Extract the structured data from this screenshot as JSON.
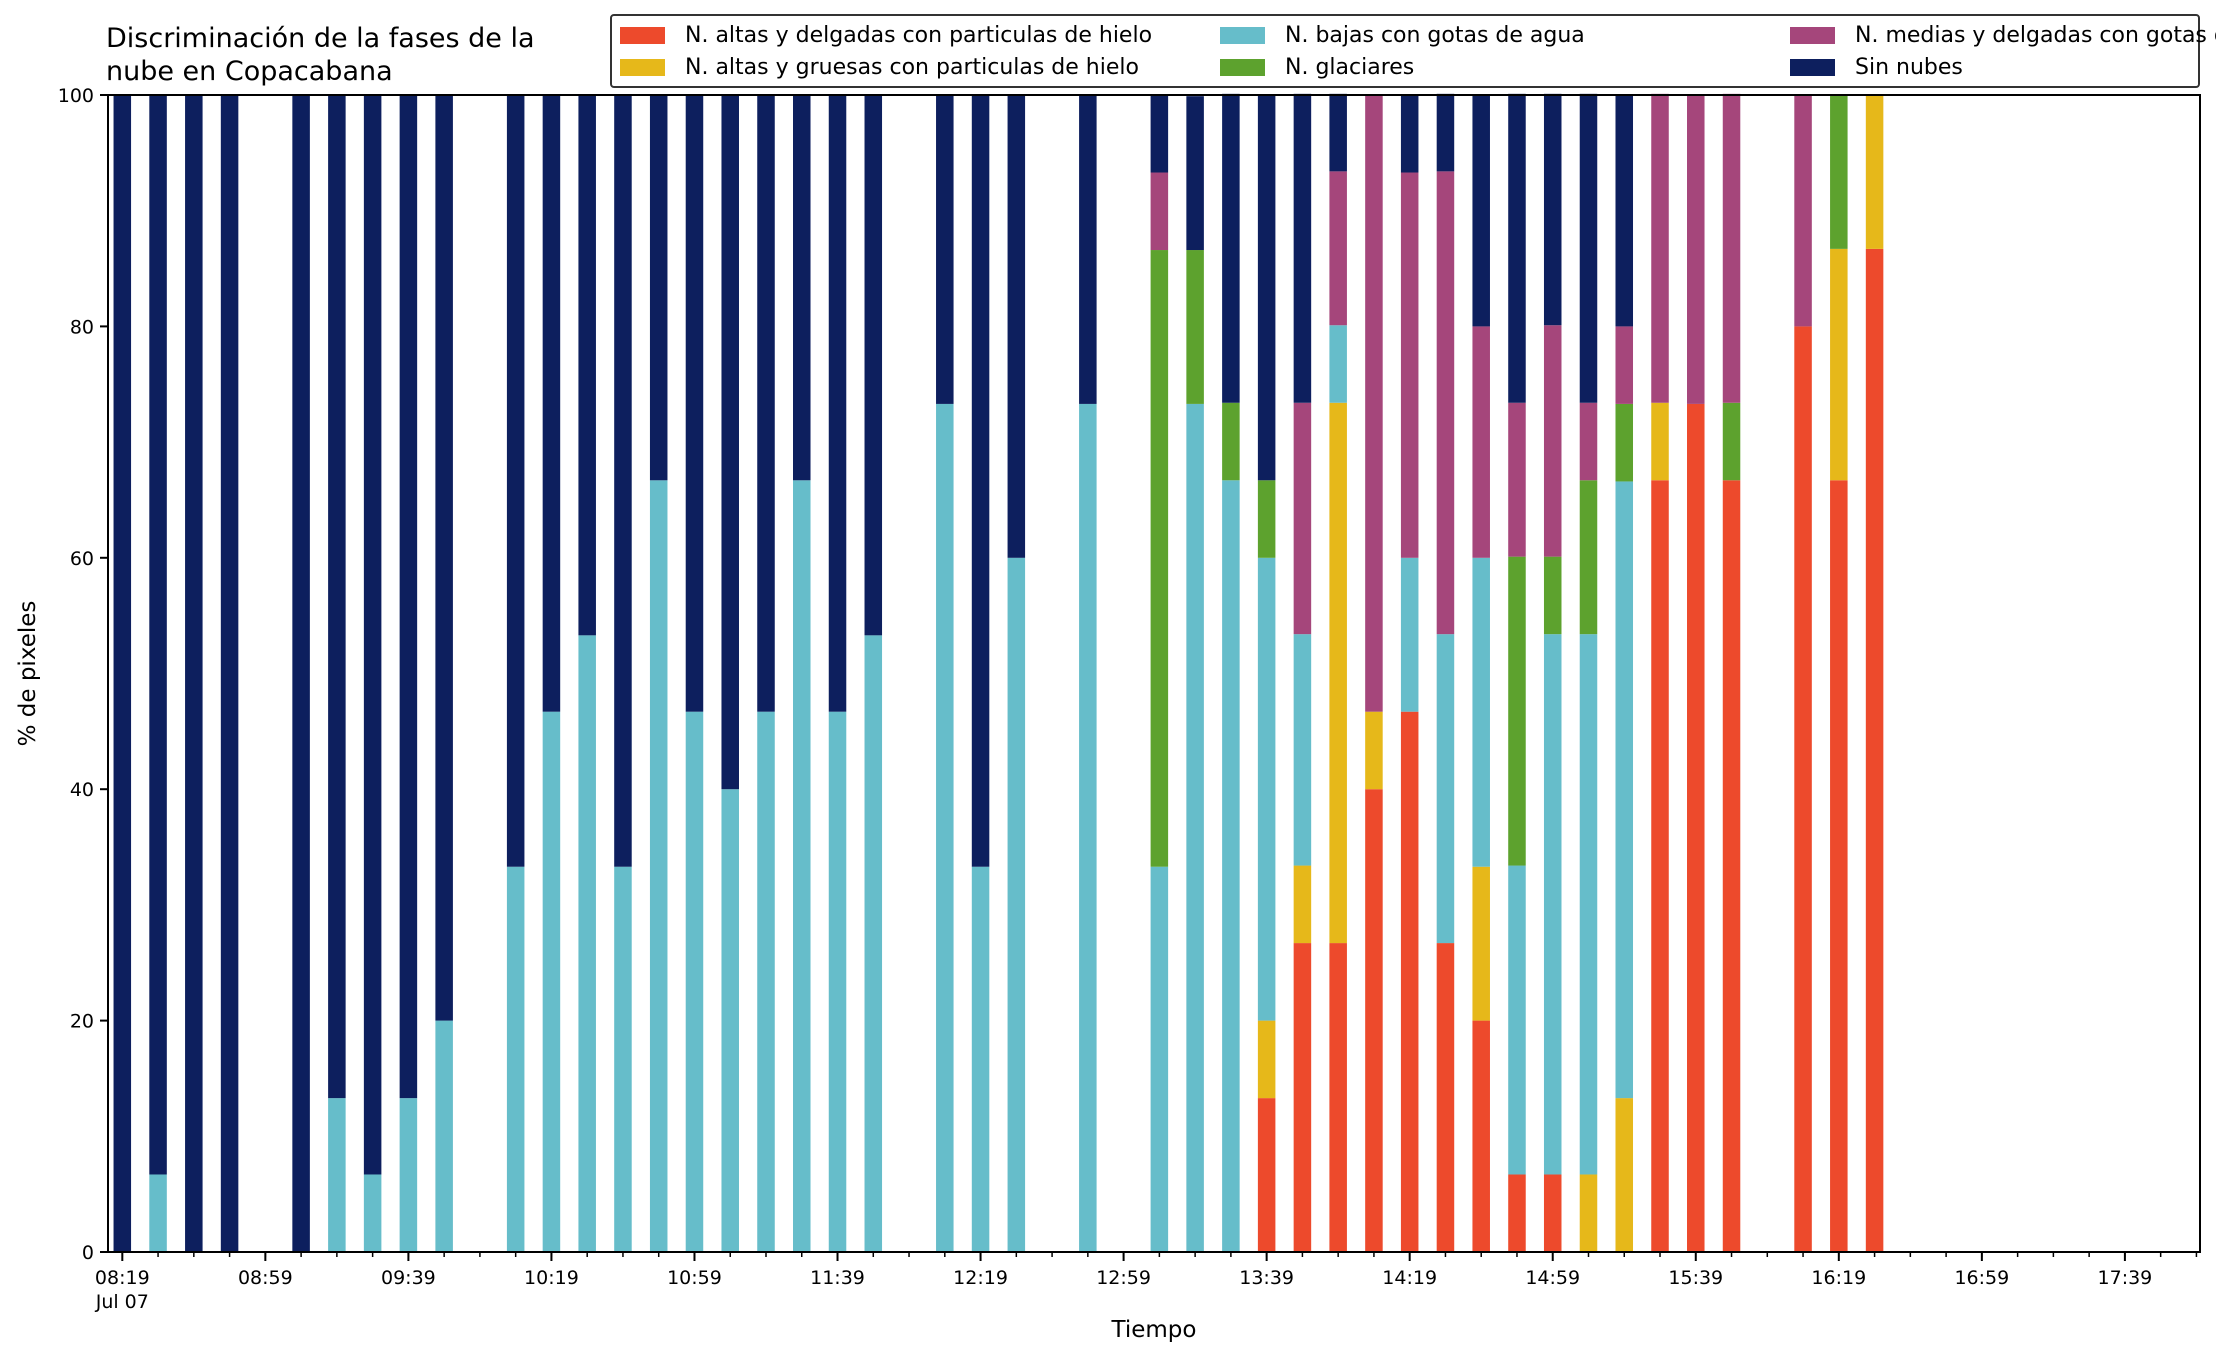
{
  "chart_data": {
    "type": "bar",
    "stacked": true,
    "title": "Discriminación de la fases de la\nnube en Copacabana",
    "xlabel": "Tiempo",
    "ylabel": "% de pixeles",
    "ylim": [
      0,
      100
    ],
    "yticks": [
      0,
      20,
      40,
      60,
      80,
      100
    ],
    "xlim": [
      "08:15",
      "18:00"
    ],
    "bar_width_minutes": 5,
    "xticks": [
      {
        "time": "08:19",
        "label": "08:19",
        "sublabel": "Jul 07"
      },
      {
        "time": "08:59",
        "label": "08:59"
      },
      {
        "time": "09:39",
        "label": "09:39"
      },
      {
        "time": "10:19",
        "label": "10:19"
      },
      {
        "time": "10:59",
        "label": "10:59"
      },
      {
        "time": "11:39",
        "label": "11:39"
      },
      {
        "time": "12:19",
        "label": "12:19"
      },
      {
        "time": "12:59",
        "label": "12:59"
      },
      {
        "time": "13:39",
        "label": "13:39"
      },
      {
        "time": "14:19",
        "label": "14:19"
      },
      {
        "time": "14:59",
        "label": "14:59"
      },
      {
        "time": "15:39",
        "label": "15:39"
      },
      {
        "time": "16:19",
        "label": "16:19"
      },
      {
        "time": "16:59",
        "label": "16:59"
      },
      {
        "time": "17:39",
        "label": "17:39"
      }
    ],
    "grid": false,
    "legend_position": "top-right",
    "x": [
      "08:19",
      "08:29",
      "08:39",
      "08:49",
      "09:09",
      "09:19",
      "09:29",
      "09:39",
      "09:49",
      "10:09",
      "10:19",
      "10:29",
      "10:39",
      "10:49",
      "10:59",
      "11:09",
      "11:19",
      "11:29",
      "11:39",
      "11:49",
      "12:09",
      "12:19",
      "12:29",
      "12:49",
      "13:09",
      "13:19",
      "13:29",
      "13:39",
      "13:49",
      "13:59",
      "14:09",
      "14:19",
      "14:29",
      "14:39",
      "14:49",
      "14:59",
      "15:09",
      "15:19",
      "15:29",
      "15:39",
      "15:49",
      "16:09",
      "16:19",
      "16:29"
    ],
    "series": [
      {
        "name": "N. altas y delgadas con particulas de hielo",
        "color": "#ed4a2c",
        "values": [
          0,
          0,
          0,
          0,
          0,
          0,
          0,
          0,
          0,
          0,
          0,
          0,
          0,
          0,
          0,
          0,
          0,
          0,
          0,
          0,
          0,
          0,
          0,
          0,
          0,
          0,
          0,
          13.3,
          26.7,
          26.7,
          40,
          46.7,
          26.7,
          20,
          6.7,
          6.7,
          0,
          0,
          66.7,
          73.3,
          66.7,
          80,
          66.7,
          86.7
        ]
      },
      {
        "name": "N. altas y gruesas con particulas de hielo",
        "color": "#e6b81a",
        "values": [
          0,
          0,
          0,
          0,
          0,
          0,
          0,
          0,
          0,
          0,
          0,
          0,
          0,
          0,
          0,
          0,
          0,
          0,
          0,
          0,
          0,
          0,
          0,
          0,
          0,
          0,
          0,
          6.7,
          6.7,
          46.7,
          6.7,
          0,
          0,
          13.3,
          0,
          0,
          6.7,
          13.3,
          6.7,
          0,
          0,
          0,
          20,
          13.3
        ]
      },
      {
        "name": "N. bajas con gotas de agua",
        "color": "#66bdca",
        "values": [
          0,
          6.7,
          0,
          0,
          0,
          13.3,
          6.7,
          13.3,
          20,
          33.3,
          46.7,
          53.3,
          33.3,
          66.7,
          46.7,
          40,
          46.7,
          66.7,
          46.7,
          53.3,
          73.3,
          33.3,
          60,
          73.3,
          33.3,
          73.3,
          66.7,
          40,
          20,
          6.7,
          0,
          13.3,
          26.7,
          26.7,
          26.7,
          46.7,
          46.7,
          53.3,
          0,
          0,
          0,
          0,
          0,
          0
        ]
      },
      {
        "name": "N. glaciares",
        "color": "#5da22e",
        "values": [
          0,
          0,
          0,
          0,
          0,
          0,
          0,
          0,
          0,
          0,
          0,
          0,
          0,
          0,
          0,
          0,
          0,
          0,
          0,
          0,
          0,
          0,
          0,
          0,
          53.3,
          13.3,
          6.7,
          6.7,
          0,
          0,
          0,
          0,
          0,
          0,
          26.7,
          6.7,
          13.3,
          6.7,
          0,
          0,
          6.7,
          0,
          13.3,
          0
        ]
      },
      {
        "name": "N. medias y delgadas con gotas de agua",
        "color": "#a5467b",
        "values": [
          0,
          0,
          0,
          0,
          0,
          0,
          0,
          0,
          0,
          0,
          0,
          0,
          0,
          0,
          0,
          0,
          0,
          0,
          0,
          0,
          0,
          0,
          0,
          0,
          6.7,
          0,
          0,
          0,
          20,
          13.3,
          53.3,
          33.3,
          40,
          20,
          13.3,
          20,
          6.7,
          6.7,
          26.7,
          26.7,
          26.7,
          20,
          0,
          0
        ]
      },
      {
        "name": "Sin nubes",
        "color": "#0d1f5e",
        "values": [
          100,
          93.3,
          100,
          100,
          100,
          86.7,
          93.3,
          86.7,
          80,
          66.7,
          53.3,
          46.7,
          66.7,
          33.3,
          53.3,
          60,
          53.3,
          33.3,
          53.3,
          46.7,
          26.7,
          66.7,
          40,
          26.7,
          6.7,
          13.3,
          26.7,
          33.3,
          26.7,
          6.7,
          0,
          6.7,
          6.7,
          20,
          26.7,
          20,
          26.7,
          20,
          0,
          0,
          0,
          0,
          0,
          0
        ]
      }
    ]
  }
}
